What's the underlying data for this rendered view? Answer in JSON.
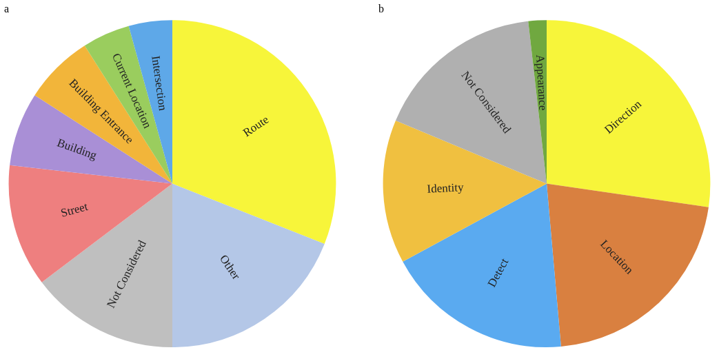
{
  "chart_data": [
    {
      "type": "pie",
      "title": "a",
      "categories": [
        "Route",
        "Other",
        "Not Considered",
        "Street",
        "Building",
        "Building Entrance",
        "Current Location",
        "Intersection"
      ],
      "values": [
        31,
        19,
        14.7,
        12.1,
        7.3,
        6.9,
        4.7,
        4.3
      ],
      "colors": [
        "#f7f53a",
        "#b4c7e7",
        "#bfbfbf",
        "#ee7f7f",
        "#a98fd6",
        "#f2b53a",
        "#9acd5e",
        "#5ea8e8"
      ],
      "legend": false
    },
    {
      "type": "pie",
      "title": "b",
      "categories": [
        "Direction",
        "Location",
        "Detect",
        "Identity",
        "Not Considered",
        "Appearance"
      ],
      "values": [
        27.3,
        21.3,
        18.5,
        14.2,
        16.9,
        1.8
      ],
      "colors": [
        "#f7f53a",
        "#d98040",
        "#5aaaf0",
        "#f0c040",
        "#b0b0b0",
        "#70a840"
      ],
      "legend": false
    }
  ]
}
